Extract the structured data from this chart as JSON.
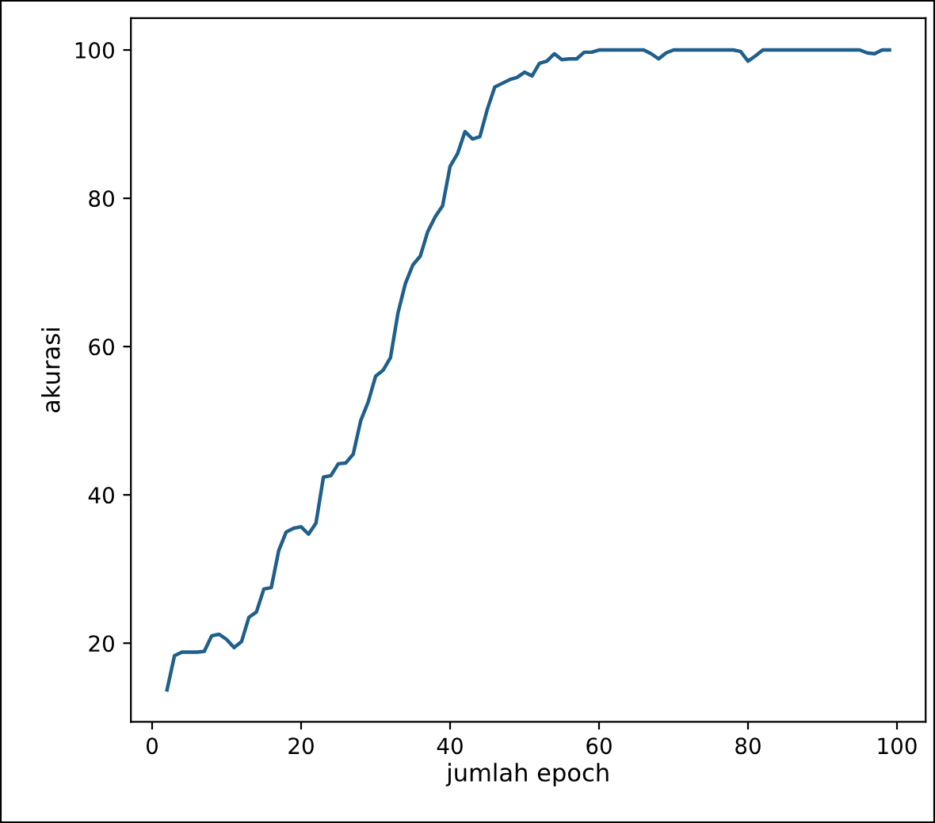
{
  "chart_data": {
    "type": "line",
    "xlabel": "jumlah epoch",
    "ylabel": "akurasi",
    "x": [
      2,
      3,
      4,
      5,
      6,
      7,
      8,
      9,
      10,
      11,
      12,
      13,
      14,
      15,
      16,
      17,
      18,
      19,
      20,
      21,
      22,
      23,
      24,
      25,
      26,
      27,
      28,
      29,
      30,
      31,
      32,
      33,
      34,
      35,
      36,
      37,
      38,
      39,
      40,
      41,
      42,
      43,
      44,
      45,
      46,
      47,
      48,
      49,
      50,
      51,
      52,
      53,
      54,
      55,
      56,
      57,
      58,
      59,
      60,
      62,
      64,
      66,
      67,
      68,
      69,
      70,
      72,
      74,
      76,
      78,
      79,
      80,
      81,
      82,
      84,
      86,
      88,
      90,
      92,
      94,
      95,
      96,
      97,
      98,
      99
    ],
    "series": [
      {
        "color": "#1f5f8b",
        "values": [
          13.7,
          18.3,
          18.8,
          18.8,
          18.8,
          18.9,
          21,
          21.2,
          20.5,
          19.4,
          20.2,
          23.5,
          24.2,
          27.3,
          27.5,
          32.5,
          35,
          35.5,
          35.7,
          34.7,
          36.2,
          42.4,
          42.6,
          44.2,
          44.3,
          45.5,
          50,
          52.5,
          56,
          56.8,
          58.5,
          64.5,
          68.5,
          71,
          72.2,
          75.5,
          77.5,
          79,
          84.3,
          86,
          89,
          88,
          88.3,
          92,
          95,
          95.5,
          96,
          96.3,
          97,
          96.5,
          98.2,
          98.5,
          99.5,
          98.7,
          98.8,
          98.8,
          99.7,
          99.7,
          100,
          100,
          100,
          100,
          99.5,
          98.8,
          99.6,
          100,
          100,
          100,
          100,
          100,
          99.8,
          98.5,
          99.2,
          100,
          100,
          100,
          100,
          100,
          100,
          100,
          100,
          99.6,
          99.5,
          100,
          100
        ]
      }
    ],
    "xlim": [
      -2.85,
      103.85
    ],
    "ylim": [
      9.4,
      104.3
    ],
    "xticks": [
      0,
      20,
      40,
      60,
      80,
      100
    ],
    "yticks": [
      20,
      40,
      60,
      80,
      100
    ],
    "grid": false,
    "legend": false,
    "marker": "none",
    "line_style": "solid"
  }
}
